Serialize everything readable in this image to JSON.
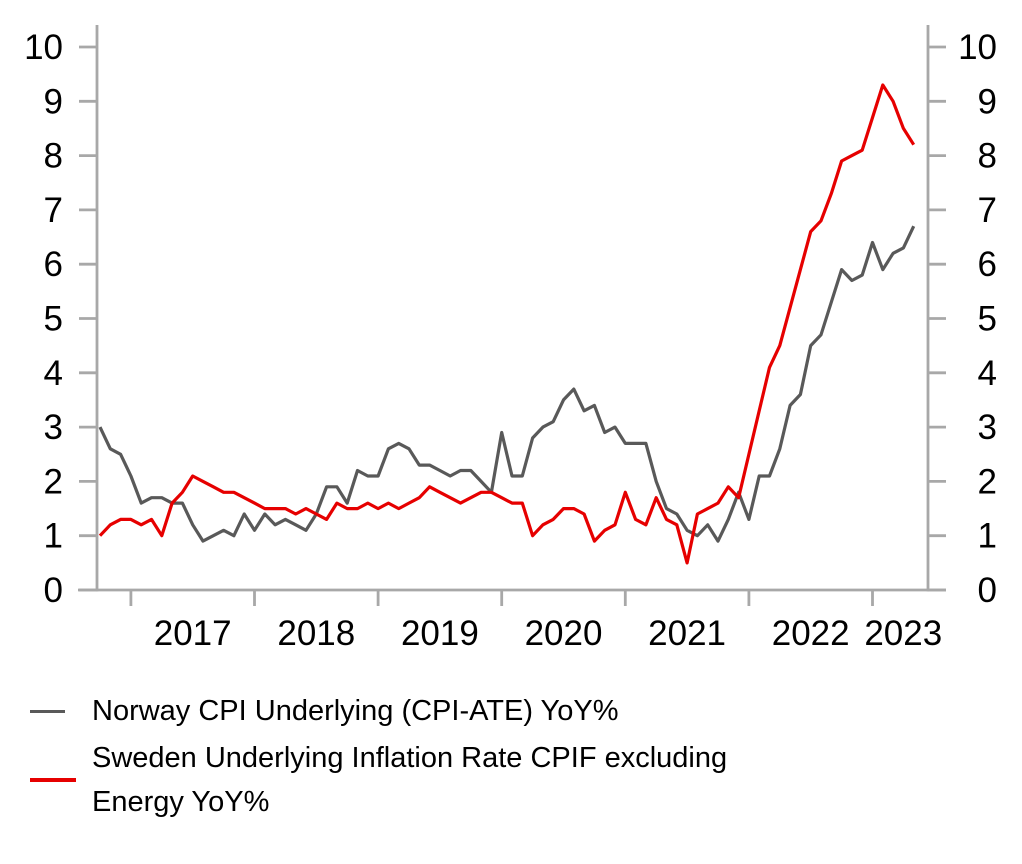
{
  "chart_data": {
    "type": "line",
    "title": "",
    "x_range": {
      "first_month": "2016-10",
      "last_month": "2023-05",
      "frequency": "monthly",
      "n_points": 80
    },
    "x_tick_labels": [
      "2017",
      "2018",
      "2019",
      "2020",
      "2021",
      "2022",
      "2023"
    ],
    "y_ticks": [
      0,
      1,
      2,
      3,
      4,
      5,
      6,
      7,
      8,
      9,
      10
    ],
    "y_tick_labels": [
      "0",
      "1",
      "2",
      "3",
      "4",
      "5",
      "6",
      "7",
      "8",
      "9",
      "10"
    ],
    "ylim": [
      0,
      10
    ],
    "y_axis_sides": "both",
    "grid": false,
    "axis_color": "#a8a8a8",
    "text_color": "#000000",
    "background_color": "#ffffff",
    "legend_position": "bottom-left",
    "series": [
      {
        "key": "norway",
        "name": "Norway CPI Underlying (CPI-ATE) YoY%",
        "color": "#595959",
        "values": [
          3.0,
          2.6,
          2.5,
          2.1,
          1.6,
          1.7,
          1.7,
          1.6,
          1.6,
          1.2,
          0.9,
          1.0,
          1.1,
          1.0,
          1.4,
          1.1,
          1.4,
          1.2,
          1.3,
          1.2,
          1.1,
          1.4,
          1.9,
          1.9,
          1.6,
          2.2,
          2.1,
          2.1,
          2.6,
          2.7,
          2.6,
          2.3,
          2.3,
          2.2,
          2.1,
          2.2,
          2.2,
          2.0,
          1.8,
          2.9,
          2.1,
          2.1,
          2.8,
          3.0,
          3.1,
          3.5,
          3.7,
          3.3,
          3.4,
          2.9,
          3.0,
          2.7,
          2.7,
          2.7,
          2.0,
          1.5,
          1.4,
          1.1,
          1.0,
          1.2,
          0.9,
          1.3,
          1.8,
          1.3,
          2.1,
          2.1,
          2.6,
          3.4,
          3.6,
          4.5,
          4.7,
          5.3,
          5.9,
          5.7,
          5.8,
          6.4,
          5.9,
          6.2,
          6.3,
          6.7
        ]
      },
      {
        "key": "sweden",
        "name": "Sweden Underlying Inflation Rate CPIF excluding Energy YoY%",
        "color": "#e60000",
        "values": [
          1.0,
          1.2,
          1.3,
          1.3,
          1.2,
          1.3,
          1.0,
          1.6,
          1.8,
          2.1,
          2.0,
          1.9,
          1.8,
          1.8,
          1.7,
          1.6,
          1.5,
          1.5,
          1.5,
          1.4,
          1.5,
          1.4,
          1.3,
          1.6,
          1.5,
          1.5,
          1.6,
          1.5,
          1.6,
          1.5,
          1.6,
          1.7,
          1.9,
          1.8,
          1.7,
          1.6,
          1.7,
          1.8,
          1.8,
          1.7,
          1.6,
          1.6,
          1.0,
          1.2,
          1.3,
          1.5,
          1.5,
          1.4,
          0.9,
          1.1,
          1.2,
          1.8,
          1.3,
          1.2,
          1.7,
          1.3,
          1.2,
          0.5,
          1.4,
          1.5,
          1.6,
          1.9,
          1.7,
          2.5,
          3.3,
          4.1,
          4.5,
          5.2,
          5.9,
          6.6,
          6.8,
          7.3,
          7.9,
          8.0,
          8.1,
          8.7,
          9.3,
          9.0,
          8.5,
          8.2
        ]
      }
    ]
  },
  "legend": {
    "items": [
      {
        "key": "norway",
        "color": "#595959",
        "lines": [
          "Norway CPI Underlying (CPI-ATE) YoY%"
        ]
      },
      {
        "key": "sweden",
        "color": "#e60000",
        "lines": [
          "Sweden Underlying Inflation Rate CPIF excluding",
          "Energy YoY%"
        ]
      }
    ]
  }
}
